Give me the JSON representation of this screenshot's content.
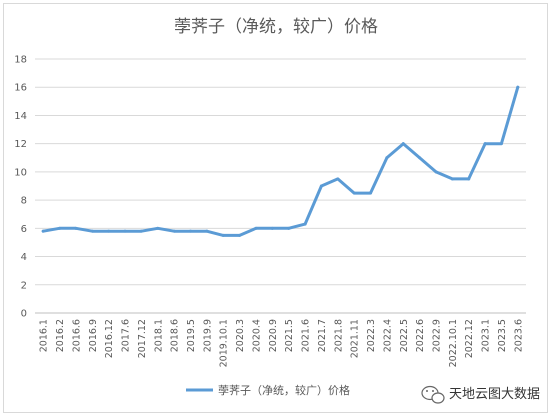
{
  "chart_data": {
    "type": "line",
    "title": "荸荠子（净统，较广）价格",
    "xlabel": "",
    "ylabel": "",
    "ylim": [
      0,
      18
    ],
    "yticks": [
      0,
      2,
      4,
      6,
      8,
      10,
      12,
      14,
      16,
      18
    ],
    "grid": true,
    "legend_position": "bottom",
    "x_tick_labels": [
      "2016.1",
      "2016.2",
      "2016.6",
      "2016.9",
      "2016.12",
      "2017.6",
      "2017.12",
      "2018.1",
      "2018.6",
      "2019.5",
      "2019.9",
      "2019.10.1",
      "2020.3",
      "2020.4",
      "2020.9",
      "2021.5",
      "2021.6",
      "2021.7",
      "2021.8",
      "2021.11",
      "2022.3",
      "2022.4",
      "2022.5",
      "2022.6",
      "2022.9",
      "2022.10.1",
      "2022.12",
      "2023.1",
      "2023.5",
      "2023.6"
    ],
    "series": [
      {
        "name": "荸荠子（净统，较广）价格",
        "color": "#5b9bd5",
        "values": [
          5.8,
          6.0,
          6.0,
          5.8,
          5.8,
          5.8,
          5.8,
          6.0,
          5.8,
          5.8,
          5.8,
          5.5,
          5.5,
          6.0,
          6.0,
          6.0,
          6.3,
          9.0,
          9.5,
          8.5,
          8.5,
          11.0,
          12.0,
          11.0,
          10.0,
          9.5,
          9.5,
          12.0,
          12.0,
          16.0
        ]
      }
    ]
  },
  "watermark": {
    "text": "天地云图大数据",
    "icon": "wechat-icon"
  }
}
